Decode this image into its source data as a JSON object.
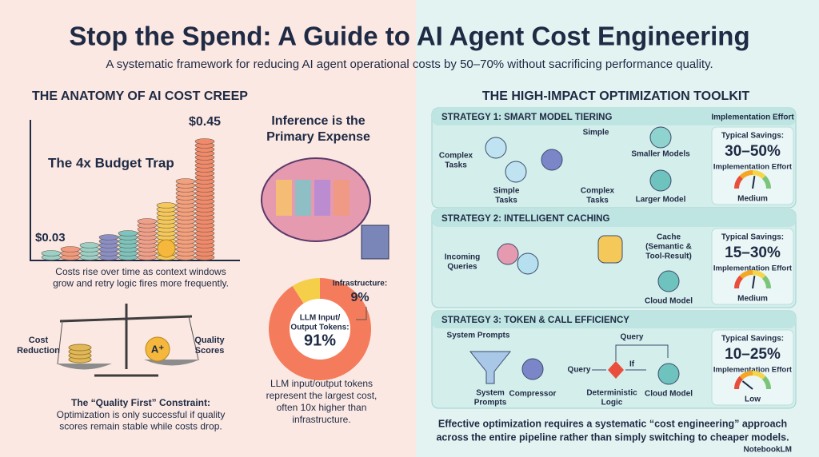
{
  "header": {
    "title": "Stop the Spend: A Guide to AI Agent Cost Engineering",
    "subtitle": "A systematic framework for reducing AI agent operational costs by 50–70% without sacrificing performance quality."
  },
  "left": {
    "heading": "THE ANATOMY OF AI COST CREEP",
    "trap_label": "The 4x Budget Trap",
    "start_cost": "$0.03",
    "end_cost": "$0.45",
    "caption": [
      "Costs rise over time as context windows",
      "grow and retry logic fires more frequently."
    ],
    "scale_left": [
      "Cost",
      "Reduction"
    ],
    "scale_right": [
      "Quality",
      "Scores"
    ],
    "constraint_title": "The “Quality First” Constraint:",
    "constraint_text": [
      "Optimization is only successful if quality",
      "scores remain stable while costs drop."
    ]
  },
  "middle": {
    "heading": [
      "Inference is the",
      "Primary Expense"
    ],
    "donut": {
      "segments": [
        {
          "label": [
            "LLM Input/",
            "Output Tokens:"
          ],
          "value": 91,
          "value_label": "91%",
          "color": "#f47c5c"
        },
        {
          "label": [
            "Infrastructure:"
          ],
          "value": 9,
          "value_label": "9%",
          "color": "#f6cf4a"
        }
      ]
    },
    "caption": [
      "LLM input/output tokens",
      "represent the largest cost,",
      "often 10x higher than",
      "infrastructure."
    ]
  },
  "right": {
    "heading": "THE HIGH-IMPACT OPTIMIZATION TOOLKIT",
    "column_header": "Implementation Effort",
    "strategies": [
      {
        "title": "STRATEGY 1: SMART MODEL TIERING",
        "savings_label": "Typical Savings:",
        "savings": "30–50%",
        "effort_label": "Implementation Effort",
        "effort": "Medium",
        "labels": [
          [
            "Complex",
            "Tasks"
          ],
          [
            "Simple",
            "Tasks"
          ],
          [
            "Simple"
          ],
          [
            "Complex",
            "Tasks"
          ],
          [
            "Smaller Models"
          ],
          [
            "Larger Model"
          ]
        ]
      },
      {
        "title": "STRATEGY 2: INTELLIGENT CACHING",
        "savings_label": "Typical Savings:",
        "savings": "15–30%",
        "effort_label": "Implementation Effort",
        "effort": "Medium",
        "labels": [
          [
            "Incoming",
            "Queries"
          ],
          [
            "Cache",
            "(Semantic &",
            "Tool-Result)"
          ],
          [
            "Cloud Model"
          ]
        ]
      },
      {
        "title": "STRATEGY 3: TOKEN & CALL EFFICIENCY",
        "savings_label": "Typical Savings:",
        "savings": "10–25%",
        "effort_label": "Implementation Effort",
        "effort": "Low",
        "labels": [
          [
            "System Prompts"
          ],
          [
            "System",
            "Prompts"
          ],
          [
            "Compressor"
          ],
          [
            "Query"
          ],
          [
            "Query"
          ],
          [
            "If"
          ],
          [
            "Deterministic",
            "Logic"
          ],
          [
            "Cloud Model"
          ]
        ]
      }
    ],
    "footer": [
      "Effective optimization requires a systematic “cost engineering” approach",
      "across the entire pipeline rather than simply switching to cheaper models."
    ]
  },
  "brand": "NotebookLM"
}
